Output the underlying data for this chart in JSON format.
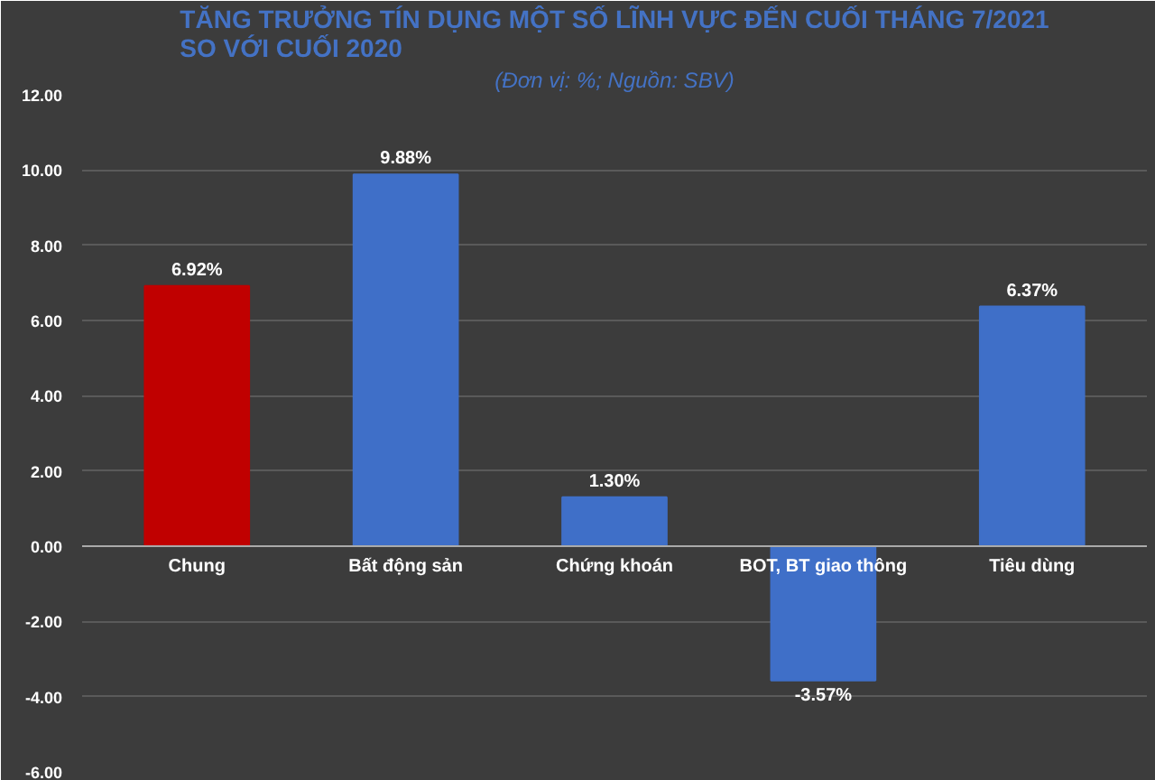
{
  "chart_data": {
    "type": "bar",
    "title": "TĂNG TRƯỞNG TÍN DỤNG MỘT SỐ LĨNH VỰC ĐẾN CUỐI THÁNG 7/2021\nSO VỚI CUỐI 2020",
    "subtitle": "(Đơn vị: %; Nguồn: SBV)",
    "categories": [
      "Chung",
      "Bất động sản",
      "Chứng khoán",
      "BOT, BT giao thông",
      "Tiêu dùng"
    ],
    "values": [
      6.92,
      9.88,
      1.3,
      -3.57,
      6.37
    ],
    "colors": [
      "#c00000",
      "#3f6fc8",
      "#3f6fc8",
      "#3f6fc8",
      "#3f6fc8"
    ],
    "value_labels": [
      "6.92%",
      "9.88%",
      "1.30%",
      "-3.57%",
      "6.37%"
    ],
    "ylim": [
      -6,
      12
    ],
    "yticks": [
      {
        "value": -6,
        "label": "-6.00"
      },
      {
        "value": -4,
        "label": "-4.00"
      },
      {
        "value": -2,
        "label": "-2.00"
      },
      {
        "value": 0,
        "label": "0.00"
      },
      {
        "value": 2,
        "label": "2.00"
      },
      {
        "value": 4,
        "label": "4.00"
      },
      {
        "value": 6,
        "label": "6.00"
      },
      {
        "value": 8,
        "label": "8.00"
      },
      {
        "value": 10,
        "label": "10.00"
      },
      {
        "value": 12,
        "label": "12.00"
      }
    ],
    "grid": "y"
  }
}
